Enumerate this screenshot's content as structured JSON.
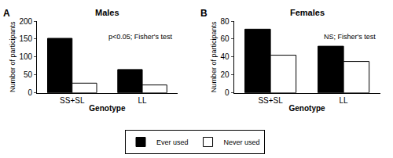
{
  "chart_data": [
    {
      "type": "bar",
      "panel": "A",
      "title": "Males",
      "x_label": "Genotype",
      "y_label": "Number of participants",
      "categories": [
        "SS+SL",
        "LL"
      ],
      "series": [
        {
          "name": "Ever used",
          "color": "#000000",
          "values": [
            152,
            65
          ]
        },
        {
          "name": "Never used",
          "color": "#ffffff",
          "values": [
            27,
            22
          ]
        }
      ],
      "annotations": [
        "p<0.05; Fisher's test"
      ],
      "ylim": [
        0,
        200
      ],
      "yticks": [
        0,
        50,
        100,
        150,
        200
      ],
      "grid": false,
      "legend": "bottom"
    },
    {
      "type": "bar",
      "panel": "B",
      "title": "Females",
      "x_label": "Genotype",
      "y_label": "Number of participants",
      "categories": [
        "SS+SL",
        "LL"
      ],
      "series": [
        {
          "name": "Ever used",
          "color": "#000000",
          "values": [
            71,
            52
          ]
        },
        {
          "name": "Never used",
          "color": "#ffffff",
          "values": [
            42,
            35
          ]
        }
      ],
      "annotations": [
        "NS; Fisher's test"
      ],
      "ylim": [
        0,
        80
      ],
      "yticks": [
        0,
        20,
        40,
        60,
        80
      ],
      "grid": false,
      "legend": "bottom"
    }
  ]
}
